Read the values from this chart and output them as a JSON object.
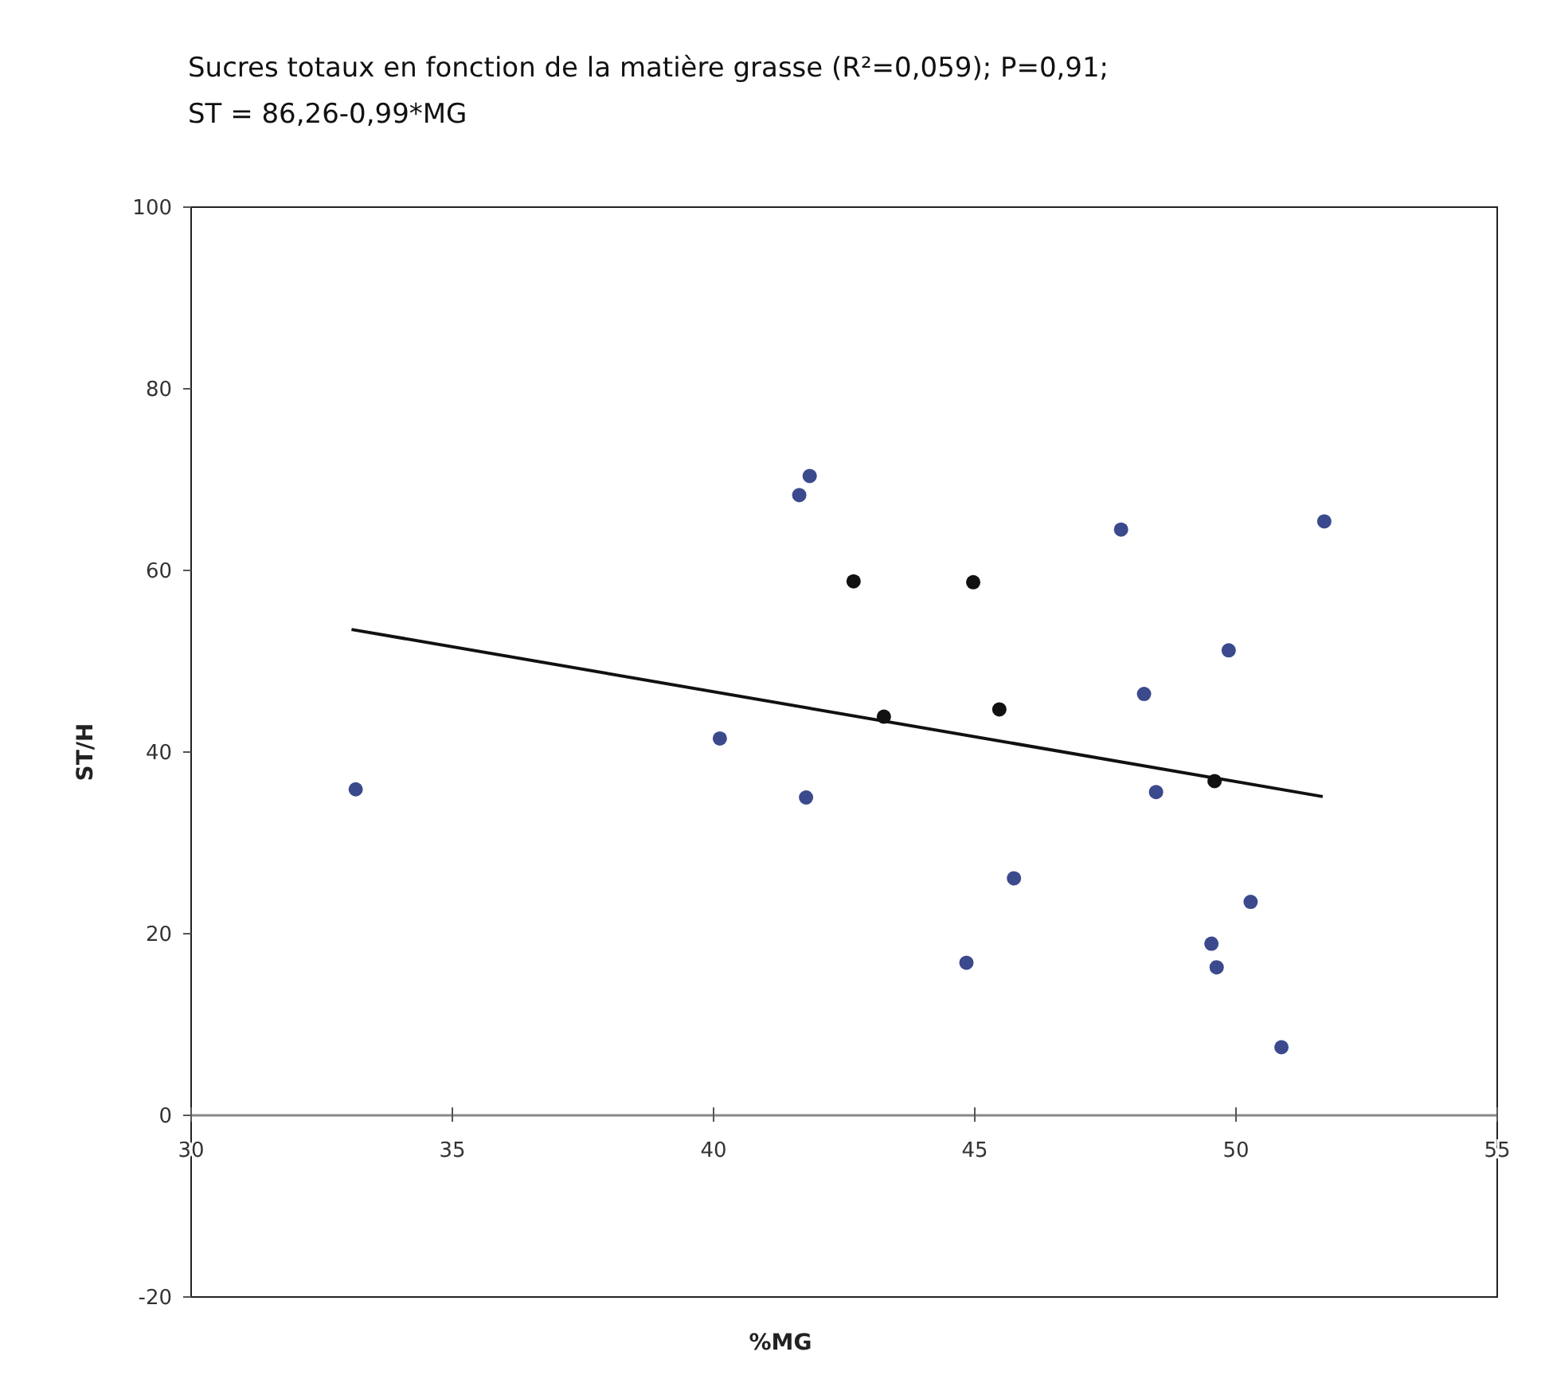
{
  "chart_data": {
    "type": "scatter",
    "title": "Sucres totaux en fonction de la matière grasse (R²=0,059); P=0,91;",
    "subtitle": "ST = 86,26-0,99*MG",
    "xlabel": "%MG",
    "ylabel": "ST/H",
    "xlim": [
      30,
      55
    ],
    "xticks": [
      30,
      35,
      40,
      45,
      50,
      55
    ],
    "ylim": [
      -20,
      100
    ],
    "yticks": [
      -20,
      0,
      20,
      40,
      60,
      80,
      100
    ],
    "grid": false,
    "marker": "circle",
    "series": [
      {
        "color": "#3b4a8c",
        "x": [
          33.15,
          40.12,
          41.64,
          41.84,
          41.77,
          47.8,
          51.69,
          49.86,
          48.24,
          48.47,
          45.75,
          44.84,
          50.28,
          49.53,
          49.63,
          50.87
        ],
        "values": [
          35.9,
          41.5,
          68.3,
          70.4,
          35.0,
          64.5,
          65.4,
          51.2,
          46.4,
          35.6,
          26.1,
          16.8,
          23.5,
          18.9,
          16.3,
          7.5
        ]
      },
      {
        "color": "#111111",
        "x": [
          42.68,
          44.97,
          45.47,
          43.26,
          49.59
        ],
        "values": [
          58.8,
          58.7,
          44.7,
          43.9,
          36.8
        ]
      },
      {
        "type": "line",
        "marker": "none",
        "color": "#111111",
        "x": [
          33.07,
          51.66
        ],
        "values": [
          53.5,
          35.1
        ]
      }
    ]
  }
}
